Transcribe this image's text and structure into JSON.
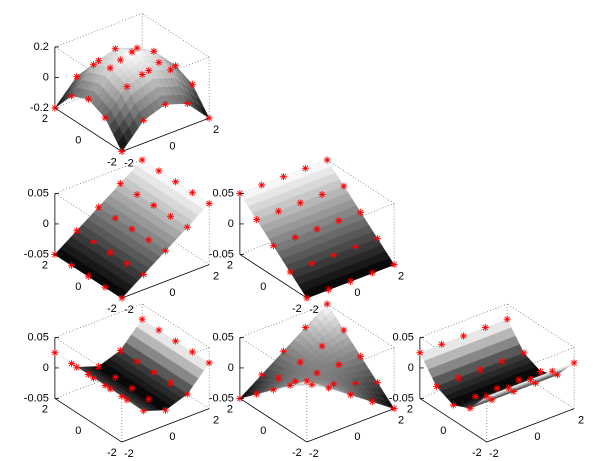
{
  "chart_data": [
    {
      "type": "surface",
      "marker_color": "#ff0000",
      "colormap": "gray",
      "x": [
        -2,
        -1,
        0,
        1,
        2
      ],
      "y": [
        -2,
        -1,
        0,
        1,
        2
      ],
      "z": [
        [
          -0.2,
          -0.05,
          0,
          -0.05,
          -0.2
        ],
        [
          -0.05,
          0.1,
          0.15,
          0.1,
          -0.05
        ],
        [
          0,
          0.15,
          0.2,
          0.15,
          0
        ],
        [
          -0.05,
          0.1,
          0.15,
          0.1,
          -0.05
        ],
        [
          -0.2,
          -0.05,
          0,
          -0.05,
          -0.2
        ]
      ],
      "xlim": [
        -2,
        2
      ],
      "ylim": [
        -2,
        2
      ],
      "zlim": [
        -0.2,
        0.2
      ],
      "xticks": [
        -2,
        0,
        2
      ],
      "yticks": [
        -2,
        0,
        2
      ],
      "zticks": [
        -0.2,
        0,
        0.2
      ]
    },
    {
      "type": "surface",
      "marker_color": "#ff0000",
      "colormap": "gray",
      "x": [
        -2,
        -1,
        0,
        1,
        2
      ],
      "y": [
        -2,
        -1,
        0,
        1,
        2
      ],
      "z": [
        [
          -0.05,
          -0.025,
          0,
          0.025,
          0.05
        ],
        [
          -0.05,
          -0.025,
          0,
          0.025,
          0.05
        ],
        [
          -0.05,
          -0.025,
          0,
          0.025,
          0.05
        ],
        [
          -0.05,
          -0.025,
          0,
          0.025,
          0.05
        ],
        [
          -0.05,
          -0.025,
          0,
          0.025,
          0.05
        ]
      ],
      "xlim": [
        -2,
        2
      ],
      "ylim": [
        -2,
        2
      ],
      "zlim": [
        -0.05,
        0.05
      ],
      "xticks": [
        -2,
        0,
        2
      ],
      "yticks": [
        -2,
        0,
        2
      ],
      "zticks": [
        -0.05,
        0,
        0.05
      ]
    },
    {
      "type": "surface",
      "marker_color": "#ff0000",
      "colormap": "gray",
      "x": [
        -2,
        -1,
        0,
        1,
        2
      ],
      "y": [
        -2,
        -1,
        0,
        1,
        2
      ],
      "z": [
        [
          -0.05,
          -0.05,
          -0.05,
          -0.05,
          -0.05
        ],
        [
          -0.025,
          -0.025,
          -0.025,
          -0.025,
          -0.025
        ],
        [
          0,
          0,
          0,
          0,
          0
        ],
        [
          0.025,
          0.025,
          0.025,
          0.025,
          0.025
        ],
        [
          0.05,
          0.05,
          0.05,
          0.05,
          0.05
        ]
      ],
      "xlim": [
        -2,
        2
      ],
      "ylim": [
        -2,
        2
      ],
      "zlim": [
        -0.05,
        0.05
      ],
      "xticks": [
        -2,
        0,
        2
      ],
      "yticks": [
        -2,
        0,
        2
      ],
      "zticks": [
        -0.05,
        0,
        0.05
      ]
    },
    {
      "type": "surface",
      "marker_color": "#ff0000",
      "colormap": "gray",
      "x": [
        -2,
        -1,
        0,
        1,
        2
      ],
      "y": [
        -2,
        -1,
        0,
        1,
        2
      ],
      "z": [
        [
          0.025,
          -0.0125,
          -0.025,
          -0.0125,
          0.025
        ],
        [
          0.025,
          -0.0125,
          -0.025,
          -0.0125,
          0.025
        ],
        [
          0.025,
          -0.0125,
          -0.025,
          -0.0125,
          0.025
        ],
        [
          0.025,
          -0.0125,
          -0.025,
          -0.0125,
          0.025
        ],
        [
          0.025,
          -0.0125,
          -0.025,
          -0.0125,
          0.025
        ]
      ],
      "xlim": [
        -2,
        2
      ],
      "ylim": [
        -2,
        2
      ],
      "zlim": [
        -0.05,
        0.05
      ],
      "xticks": [
        -2,
        0,
        2
      ],
      "yticks": [
        -2,
        0,
        2
      ],
      "zticks": [
        -0.05,
        0,
        0.05
      ]
    },
    {
      "type": "surface",
      "marker_color": "#ff0000",
      "colormap": "gray",
      "x": [
        -2,
        -1,
        0,
        1,
        2
      ],
      "y": [
        -2,
        -1,
        0,
        1,
        2
      ],
      "z": [
        [
          0.05,
          0.025,
          0,
          -0.025,
          -0.05
        ],
        [
          0.025,
          0.0125,
          0,
          -0.0125,
          -0.025
        ],
        [
          0,
          0,
          0,
          0,
          0
        ],
        [
          -0.025,
          -0.0125,
          0,
          0.0125,
          0.025
        ],
        [
          -0.05,
          -0.025,
          0,
          0.025,
          0.05
        ]
      ],
      "xlim": [
        -2,
        2
      ],
      "ylim": [
        -2,
        2
      ],
      "zlim": [
        -0.05,
        0.05
      ],
      "xticks": [
        -2,
        0,
        2
      ],
      "yticks": [
        -2,
        0,
        2
      ],
      "zticks": [
        -0.05,
        0,
        0.05
      ]
    },
    {
      "type": "surface",
      "marker_color": "#ff0000",
      "colormap": "gray",
      "x": [
        -2,
        -1,
        0,
        1,
        2
      ],
      "y": [
        -2,
        -1,
        0,
        1,
        2
      ],
      "z": [
        [
          0.025,
          0.025,
          0.025,
          0.025,
          0.025
        ],
        [
          -0.0125,
          -0.0125,
          -0.0125,
          -0.0125,
          -0.0125
        ],
        [
          -0.025,
          -0.025,
          -0.025,
          -0.025,
          -0.025
        ],
        [
          -0.0125,
          -0.0125,
          -0.0125,
          -0.0125,
          -0.0125
        ],
        [
          0.025,
          0.025,
          0.025,
          0.025,
          0.025
        ]
      ],
      "xlim": [
        -2,
        2
      ],
      "ylim": [
        -2,
        2
      ],
      "zlim": [
        -0.05,
        0.05
      ],
      "xticks": [
        -2,
        0,
        2
      ],
      "yticks": [
        -2,
        0,
        2
      ],
      "zticks": [
        -0.05,
        0,
        0.05
      ]
    }
  ]
}
